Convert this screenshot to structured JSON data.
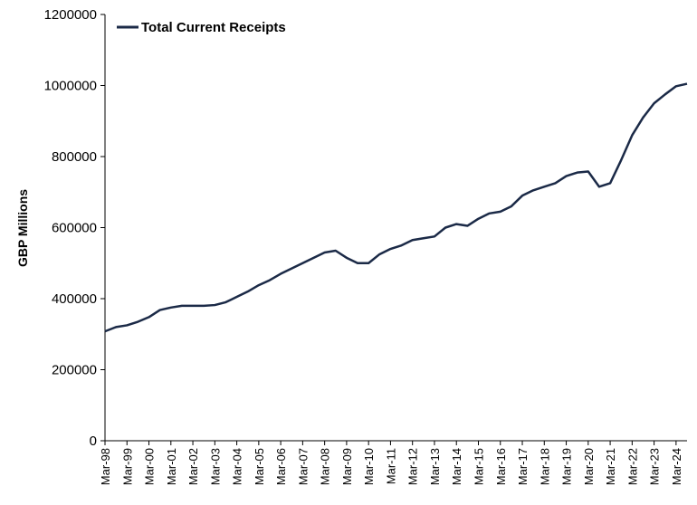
{
  "chart_data": {
    "type": "line",
    "title": "",
    "xlabel": "",
    "ylabel": "GBP Millions",
    "ylim": [
      0,
      1200000
    ],
    "yticks": [
      "0",
      "200000",
      "400000",
      "600000",
      "800000",
      "1000000",
      "1200000"
    ],
    "x_tick_labels": [
      "Mar-98",
      "Mar-99",
      "Mar-00",
      "Mar-01",
      "Mar-02",
      "Mar-03",
      "Mar-04",
      "Mar-05",
      "Mar-06",
      "Mar-07",
      "Mar-08",
      "Mar-09",
      "Mar-10",
      "Mar-11",
      "Mar-12",
      "Mar-13",
      "Mar-14",
      "Mar-15",
      "Mar-16",
      "Mar-17",
      "Mar-18",
      "Mar-19",
      "Mar-20",
      "Mar-21",
      "Mar-22",
      "Mar-23",
      "Mar-24"
    ],
    "grid": false,
    "legend_position": "top-left",
    "series": [
      {
        "name": "Total Current Receipts",
        "color": "#1b2a47",
        "x": [
          "Mar-98",
          "Sep-98",
          "Mar-99",
          "Sep-99",
          "Mar-00",
          "Sep-00",
          "Mar-01",
          "Sep-01",
          "Mar-02",
          "Sep-02",
          "Mar-03",
          "Sep-03",
          "Mar-04",
          "Sep-04",
          "Mar-05",
          "Sep-05",
          "Mar-06",
          "Sep-06",
          "Mar-07",
          "Sep-07",
          "Mar-08",
          "Sep-08",
          "Mar-09",
          "Sep-09",
          "Mar-10",
          "Sep-10",
          "Mar-11",
          "Sep-11",
          "Mar-12",
          "Sep-12",
          "Mar-13",
          "Sep-13",
          "Mar-14",
          "Sep-14",
          "Mar-15",
          "Sep-15",
          "Mar-16",
          "Sep-16",
          "Mar-17",
          "Sep-17",
          "Mar-18",
          "Sep-18",
          "Mar-19",
          "Sep-19",
          "Mar-20",
          "Sep-20",
          "Mar-21",
          "Sep-21",
          "Mar-22",
          "Sep-22",
          "Mar-23",
          "Sep-23",
          "Mar-24",
          "Sep-24"
        ],
        "values": [
          308000,
          320000,
          325000,
          335000,
          348000,
          368000,
          375000,
          380000,
          380000,
          380000,
          382000,
          390000,
          405000,
          420000,
          438000,
          452000,
          470000,
          485000,
          500000,
          515000,
          530000,
          535000,
          515000,
          500000,
          500000,
          525000,
          540000,
          550000,
          565000,
          570000,
          575000,
          600000,
          610000,
          605000,
          625000,
          640000,
          645000,
          660000,
          690000,
          705000,
          715000,
          725000,
          745000,
          755000,
          758000,
          715000,
          725000,
          790000,
          860000,
          910000,
          950000,
          975000,
          998000,
          1005000
        ]
      }
    ]
  }
}
